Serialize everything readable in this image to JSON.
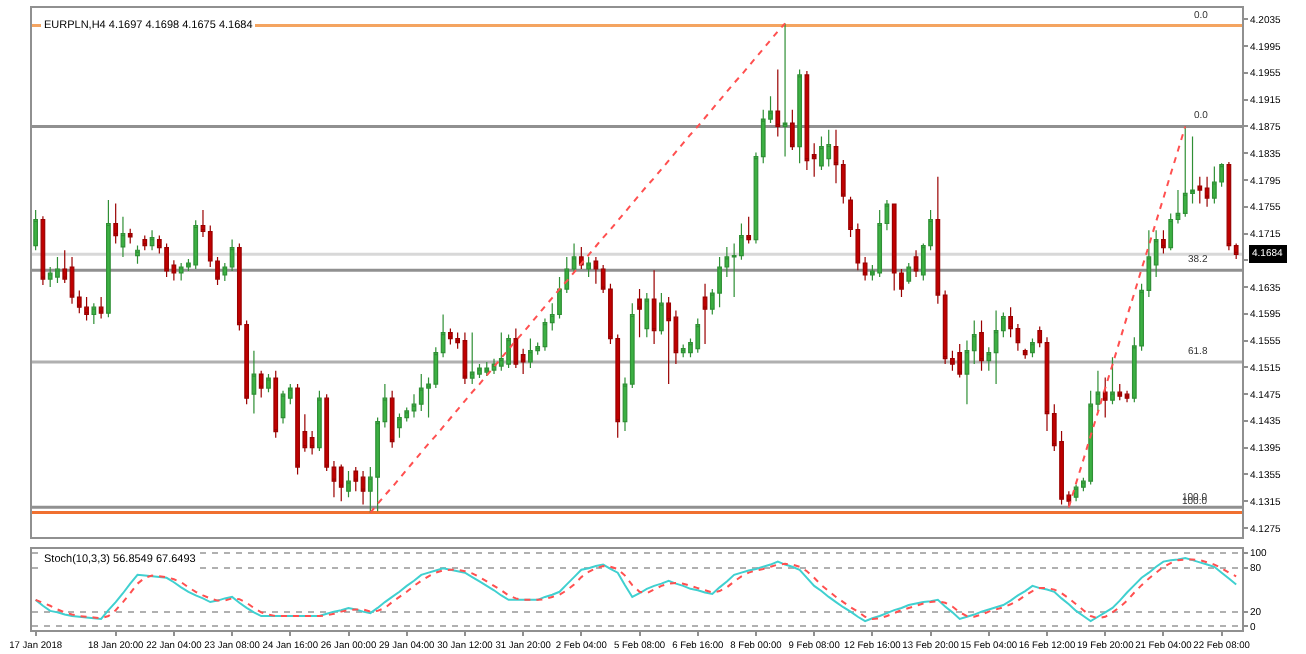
{
  "chart_data": [
    {
      "type": "candlestick",
      "title": "EURPLN,H4 4.1697 4.1698 4.1675 4.1684",
      "tick_labels": "y",
      "grid": false,
      "categories": [
        null,
        null,
        null,
        null,
        null,
        null,
        null,
        null,
        null,
        null,
        null,
        null,
        null,
        null,
        null,
        null,
        null,
        null,
        null,
        null,
        null,
        null,
        null,
        null,
        null,
        null,
        null,
        null,
        null,
        null,
        null,
        null,
        null,
        null,
        null,
        null,
        null,
        null,
        null,
        null,
        null,
        null,
        null,
        null,
        null,
        null,
        null,
        null,
        null,
        null,
        null,
        null,
        null,
        null,
        null,
        null,
        null,
        null,
        null,
        null,
        null,
        null,
        null,
        null,
        null,
        null,
        null,
        null,
        null,
        null,
        null,
        null,
        null,
        null,
        null,
        null,
        null,
        null,
        null,
        null,
        null,
        null,
        null,
        null,
        null,
        null,
        null,
        null,
        null,
        null,
        null,
        null,
        null,
        null,
        null,
        null,
        null,
        null,
        null,
        null,
        null,
        null,
        null,
        null,
        null,
        null,
        null,
        null,
        null,
        null,
        null,
        null,
        null,
        null,
        null,
        null,
        null,
        null,
        null,
        null,
        null,
        null,
        null,
        null,
        null,
        null,
        null,
        null,
        null,
        null,
        null,
        null,
        null,
        null,
        null,
        null,
        null,
        null,
        null,
        null,
        null,
        null,
        null,
        null,
        null,
        null,
        null,
        null,
        null,
        null,
        null,
        null,
        null,
        null,
        null,
        null,
        null,
        null,
        null,
        null,
        null,
        null,
        null,
        null,
        null,
        null
      ],
      "ohlc": [
        [
          4.1697,
          4.175,
          4.169,
          4.1736
        ],
        [
          4.1736,
          4.1741,
          4.1638,
          4.1647
        ],
        [
          4.1647,
          4.1665,
          4.1635,
          4.1656
        ],
        [
          4.165,
          4.168,
          4.1641,
          4.1662
        ],
        [
          4.1662,
          4.169,
          4.1641,
          4.1647
        ],
        [
          4.1665,
          4.168,
          4.161,
          4.162
        ],
        [
          4.162,
          4.163,
          4.1596,
          4.1605
        ],
        [
          4.1605,
          4.162,
          4.1585,
          4.1594
        ],
        [
          4.1594,
          4.1611,
          4.158,
          4.1605
        ],
        [
          4.1605,
          4.162,
          4.1588,
          4.1596
        ],
        [
          4.1596,
          4.1765,
          4.159,
          4.173
        ],
        [
          4.173,
          4.176,
          4.17,
          4.1712
        ],
        [
          4.1695,
          4.174,
          4.168,
          4.1715
        ],
        [
          4.1715,
          4.1722,
          4.17,
          4.171
        ],
        [
          4.1682,
          4.1697,
          4.167,
          4.169
        ],
        [
          4.1706,
          4.1712,
          4.169,
          4.1697
        ],
        [
          4.1697,
          4.172,
          4.169,
          4.1709
        ],
        [
          4.1706,
          4.1712,
          4.1685,
          4.1694
        ],
        [
          4.1694,
          4.17,
          4.165,
          4.1659
        ],
        [
          4.1668,
          4.1675,
          4.1645,
          4.1656
        ],
        [
          4.1656,
          4.1671,
          4.1645,
          4.1665
        ],
        [
          4.1665,
          4.1677,
          4.1659,
          4.1671
        ],
        [
          4.1668,
          4.1735,
          4.1662,
          4.1727
        ],
        [
          4.1727,
          4.175,
          4.171,
          4.1718
        ],
        [
          4.1718,
          4.1727,
          4.1665,
          4.1674
        ],
        [
          4.1674,
          4.168,
          4.1638,
          4.1647
        ],
        [
          4.1653,
          4.1671,
          4.1644,
          4.1665
        ],
        [
          4.1665,
          4.1706,
          4.1659,
          4.1694
        ],
        [
          4.1694,
          4.17,
          4.157,
          4.1579
        ],
        [
          4.1579,
          4.1585,
          4.146,
          4.1469
        ],
        [
          4.1475,
          4.154,
          4.1446,
          4.1505
        ],
        [
          4.1505,
          4.151,
          4.147,
          4.1484
        ],
        [
          4.1484,
          4.1505,
          4.1478,
          4.1499
        ],
        [
          4.1499,
          4.151,
          4.141,
          4.1419
        ],
        [
          4.144,
          4.148,
          4.1431,
          4.1475
        ],
        [
          4.1469,
          4.149,
          4.146,
          4.1484
        ],
        [
          4.1484,
          4.149,
          4.1355,
          4.1366
        ],
        [
          4.1419,
          4.1445,
          4.1389,
          4.1395
        ],
        [
          4.141,
          4.142,
          4.1385,
          4.1395
        ],
        [
          4.1395,
          4.148,
          4.139,
          4.1469
        ],
        [
          4.1469,
          4.1475,
          4.136,
          4.1366
        ],
        [
          4.1366,
          4.1375,
          4.1321,
          4.1345
        ],
        [
          4.1366,
          4.137,
          4.1315,
          4.1336
        ],
        [
          4.133,
          4.136,
          4.1321,
          4.1345
        ],
        [
          4.136,
          4.1366,
          4.133,
          4.1345
        ],
        [
          4.1351,
          4.136,
          4.131,
          4.133
        ],
        [
          4.133,
          4.1366,
          4.1298,
          4.1351
        ],
        [
          4.1351,
          4.144,
          4.13,
          4.1434
        ],
        [
          4.1434,
          4.149,
          4.1425,
          4.1469
        ],
        [
          4.1469,
          4.148,
          4.1395,
          4.1404
        ],
        [
          4.1425,
          4.1446,
          4.141,
          4.144
        ],
        [
          4.144,
          4.1455,
          4.1434,
          4.145
        ],
        [
          4.145,
          4.1475,
          4.144,
          4.146
        ],
        [
          4.146,
          4.1505,
          4.145,
          4.1484
        ],
        [
          4.1484,
          4.15,
          4.144,
          4.149
        ],
        [
          4.149,
          4.1545,
          4.1484,
          4.1537
        ],
        [
          4.1537,
          4.1594,
          4.153,
          4.1567
        ],
        [
          4.1567,
          4.1573,
          4.1549,
          4.1558
        ],
        [
          4.1558,
          4.1567,
          4.1543,
          4.1552
        ],
        [
          4.1555,
          4.1567,
          4.149,
          4.1499
        ],
        [
          4.1499,
          4.1567,
          4.149,
          4.1508
        ],
        [
          4.1505,
          4.152,
          4.1499,
          4.1514
        ],
        [
          4.1508,
          4.1523,
          4.1502,
          4.1514
        ],
        [
          4.1511,
          4.1528,
          4.1505,
          4.152
        ],
        [
          4.1517,
          4.1567,
          4.151,
          4.1528
        ],
        [
          4.152,
          4.1564,
          4.1514,
          4.1558
        ],
        [
          4.1558,
          4.1573,
          4.1514,
          4.152
        ],
        [
          4.1534,
          4.1543,
          4.1505,
          4.1523
        ],
        [
          4.1523,
          4.1558,
          4.1514,
          4.154
        ],
        [
          4.154,
          4.1552,
          4.1534,
          4.1546
        ],
        [
          4.1546,
          4.1588,
          4.154,
          4.1582
        ],
        [
          4.1582,
          4.1611,
          4.157,
          4.1594
        ],
        [
          4.1594,
          4.165,
          4.1588,
          4.1632
        ],
        [
          4.1632,
          4.168,
          4.1626,
          4.1662
        ],
        [
          4.1662,
          4.17,
          4.1656,
          4.168
        ],
        [
          4.168,
          4.1695,
          4.1662,
          4.1668
        ],
        [
          4.1662,
          4.168,
          4.165,
          4.1671
        ],
        [
          4.1674,
          4.168,
          4.164,
          4.1662
        ],
        [
          4.1662,
          4.1668,
          4.1626,
          4.1632
        ],
        [
          4.1632,
          4.164,
          4.155,
          4.1558
        ],
        [
          4.1558,
          4.1564,
          4.141,
          4.1434
        ],
        [
          4.1434,
          4.15,
          4.142,
          4.149
        ],
        [
          4.149,
          4.1611,
          4.1484,
          4.1594
        ],
        [
          4.1617,
          4.1632,
          4.156,
          4.1602
        ],
        [
          4.1573,
          4.1626,
          4.156,
          4.1617
        ],
        [
          4.1617,
          4.166,
          4.155,
          4.157
        ],
        [
          4.157,
          4.1626,
          4.1564,
          4.1611
        ],
        [
          4.1611,
          4.162,
          4.149,
          4.1585
        ],
        [
          4.159,
          4.16,
          4.152,
          4.1537
        ],
        [
          4.1537,
          4.1549,
          4.153,
          4.1543
        ],
        [
          4.1537,
          4.1558,
          4.153,
          4.1552
        ],
        [
          4.1543,
          4.1588,
          4.1537,
          4.1579
        ],
        [
          4.162,
          4.164,
          4.155,
          4.1602
        ],
        [
          4.1602,
          4.1632,
          4.1594,
          4.1626
        ],
        [
          4.1626,
          4.168,
          4.1605,
          4.1665
        ],
        [
          4.1665,
          4.1695,
          4.165,
          4.168
        ],
        [
          4.168,
          4.17,
          4.162,
          4.1682
        ],
        [
          4.1682,
          4.173,
          4.1676,
          4.1712
        ],
        [
          4.1712,
          4.174,
          4.17,
          4.1706
        ],
        [
          4.1706,
          4.1836,
          4.17,
          4.183
        ],
        [
          4.183,
          4.19,
          4.182,
          4.1886
        ],
        [
          4.1886,
          4.192,
          4.188,
          4.1898
        ],
        [
          4.1898,
          4.196,
          4.186,
          4.1875
        ],
        [
          4.1875,
          4.2029,
          4.183,
          4.188
        ],
        [
          4.188,
          4.19,
          4.184,
          4.1845
        ],
        [
          4.1845,
          4.196,
          4.182,
          4.1952
        ],
        [
          4.1952,
          4.1958,
          4.181,
          4.1824
        ],
        [
          4.1833,
          4.185,
          4.18,
          4.1827
        ],
        [
          4.1816,
          4.186,
          4.181,
          4.1845
        ],
        [
          4.1827,
          4.187,
          4.1815,
          4.1848
        ],
        [
          4.1845,
          4.187,
          4.179,
          4.1818
        ],
        [
          4.1818,
          4.1825,
          4.176,
          4.1771
        ],
        [
          4.1765,
          4.177,
          4.171,
          4.1721
        ],
        [
          4.1721,
          4.173,
          4.166,
          4.1671
        ],
        [
          4.1671,
          4.168,
          4.1645,
          4.1653
        ],
        [
          4.1653,
          4.1668,
          4.1645,
          4.1659
        ],
        [
          4.1656,
          4.175,
          4.165,
          4.173
        ],
        [
          4.173,
          4.1765,
          4.172,
          4.1759
        ],
        [
          4.1759,
          4.176,
          4.163,
          4.1656
        ],
        [
          4.1656,
          4.1662,
          4.162,
          4.1632
        ],
        [
          4.1644,
          4.1671,
          4.164,
          4.1665
        ],
        [
          4.168,
          4.169,
          4.165,
          4.1659
        ],
        [
          4.1653,
          4.17,
          4.1645,
          4.1697
        ],
        [
          4.1697,
          4.175,
          4.169,
          4.1736
        ],
        [
          4.1736,
          4.18,
          4.161,
          4.1623
        ],
        [
          4.1623,
          4.163,
          4.152,
          4.1528
        ],
        [
          4.1528,
          4.154,
          4.151,
          4.152
        ],
        [
          4.1537,
          4.155,
          4.15,
          4.1505
        ],
        [
          4.1505,
          4.1555,
          4.146,
          4.154
        ],
        [
          4.154,
          4.1585,
          4.152,
          4.1564
        ],
        [
          4.1567,
          4.1585,
          4.151,
          4.1525
        ],
        [
          4.1525,
          4.1545,
          4.151,
          4.1537
        ],
        [
          4.1537,
          4.16,
          4.149,
          4.157
        ],
        [
          4.157,
          4.1597,
          4.156,
          4.1591
        ],
        [
          4.1591,
          4.1605,
          4.156,
          4.1573
        ],
        [
          4.1573,
          4.158,
          4.154,
          4.1552
        ],
        [
          4.154,
          4.1543,
          4.1528,
          4.1534
        ],
        [
          4.1537,
          4.1558,
          4.153,
          4.1552
        ],
        [
          4.157,
          4.1576,
          4.1545,
          4.1552
        ],
        [
          4.1552,
          4.156,
          4.142,
          4.1446
        ],
        [
          4.1446,
          4.146,
          4.139,
          4.1398
        ],
        [
          4.1404,
          4.142,
          4.131,
          4.1318
        ],
        [
          4.1324,
          4.133,
          4.1306,
          4.1315
        ],
        [
          4.1321,
          4.134,
          4.1315,
          4.1336
        ],
        [
          4.1336,
          4.135,
          4.133,
          4.1345
        ],
        [
          4.1345,
          4.148,
          4.134,
          4.146
        ],
        [
          4.146,
          4.151,
          4.145,
          4.1478
        ],
        [
          4.1478,
          4.15,
          4.144,
          4.1466
        ],
        [
          4.1466,
          4.153,
          4.146,
          4.1478
        ],
        [
          4.1478,
          4.149,
          4.1466,
          4.1472
        ],
        [
          4.1475,
          4.148,
          4.1463,
          4.1469
        ],
        [
          4.1469,
          4.156,
          4.1463,
          4.1547
        ],
        [
          4.1547,
          4.164,
          4.154,
          4.163
        ],
        [
          4.163,
          4.172,
          4.162,
          4.168
        ],
        [
          4.1668,
          4.172,
          4.165,
          4.1706
        ],
        [
          4.1706,
          4.172,
          4.1685,
          4.1694
        ],
        [
          4.1694,
          4.1745,
          4.169,
          4.1736
        ],
        [
          4.1736,
          4.178,
          4.173,
          4.1745
        ],
        [
          4.1745,
          4.1875,
          4.174,
          4.1775
        ],
        [
          4.1775,
          4.186,
          4.176,
          4.178
        ],
        [
          4.1786,
          4.18,
          4.176,
          4.178
        ],
        [
          4.1783,
          4.18,
          4.1755,
          4.1768
        ],
        [
          4.1768,
          4.1815,
          4.176,
          4.1792
        ],
        [
          4.1792,
          4.182,
          4.1785,
          4.1818
        ],
        [
          4.1818,
          4.1822,
          4.169,
          4.1697
        ],
        [
          4.1697,
          4.17,
          4.1677,
          4.1684
        ]
      ],
      "series": [
        {
          "type": "line",
          "color": "#ff5050",
          "line_style": "dotted",
          "values": [
            null,
            null,
            null,
            null,
            null,
            null,
            null,
            null,
            null,
            null,
            null,
            null,
            null,
            null,
            null,
            null,
            null,
            null,
            null,
            null,
            null,
            null,
            null,
            null,
            null,
            null,
            null,
            null,
            null,
            null,
            null,
            null,
            null,
            null,
            null,
            null,
            null,
            null,
            null,
            null,
            null,
            null,
            null,
            null,
            null,
            null,
            4.1298,
            4.1311,
            4.1324,
            4.1336,
            4.1349,
            4.1362,
            4.1375,
            4.1388,
            4.1401,
            4.1413,
            4.1426,
            4.1439,
            4.1452,
            4.1465,
            4.1478,
            4.149,
            4.1503,
            4.1516,
            4.1529,
            4.1542,
            4.1555,
            4.1567,
            4.158,
            4.1593,
            4.1606,
            4.1619,
            4.1632,
            4.1644,
            4.1657,
            4.167,
            4.1683,
            4.1696,
            4.1709,
            4.1721,
            4.1734,
            4.1747,
            4.176,
            4.1773,
            4.1786,
            4.1798,
            4.1811,
            4.1824,
            4.1837,
            4.185,
            4.1863,
            4.1875,
            4.1888,
            4.1901,
            4.1914,
            4.1927,
            4.194,
            4.1952,
            4.1965,
            4.1978,
            4.1991,
            4.2004,
            4.2017,
            4.2029,
            null,
            null,
            null,
            null,
            null,
            null,
            null,
            null,
            null,
            null,
            null,
            null,
            null,
            null,
            null,
            null,
            null,
            null,
            null,
            null,
            null,
            null,
            null,
            null,
            null,
            null,
            null,
            null,
            null,
            null,
            null,
            null,
            null,
            null,
            null,
            null,
            null,
            null,
            null,
            null,
            null,
            null,
            null,
            null,
            null,
            null,
            null,
            null,
            null,
            null,
            null,
            null,
            null,
            null,
            null,
            null,
            null,
            null,
            null,
            null,
            null,
            null
          ]
        },
        {
          "type": "line",
          "color": "#ff5050",
          "line_style": "dotted",
          "values": [
            null,
            null,
            null,
            null,
            null,
            null,
            null,
            null,
            null,
            null,
            null,
            null,
            null,
            null,
            null,
            null,
            null,
            null,
            null,
            null,
            null,
            null,
            null,
            null,
            null,
            null,
            null,
            null,
            null,
            null,
            null,
            null,
            null,
            null,
            null,
            null,
            null,
            null,
            null,
            null,
            null,
            null,
            null,
            null,
            null,
            null,
            null,
            null,
            null,
            null,
            null,
            null,
            null,
            null,
            null,
            null,
            null,
            null,
            null,
            null,
            null,
            null,
            null,
            null,
            null,
            null,
            null,
            null,
            null,
            null,
            null,
            null,
            null,
            null,
            null,
            null,
            null,
            null,
            null,
            null,
            null,
            null,
            null,
            null,
            null,
            null,
            null,
            null,
            null,
            null,
            null,
            null,
            null,
            null,
            null,
            null,
            null,
            null,
            null,
            null,
            null,
            null,
            null,
            null,
            null,
            null,
            null,
            null,
            null,
            null,
            null,
            null,
            null,
            null,
            null,
            null,
            null,
            null,
            null,
            null,
            null,
            null,
            null,
            null,
            null,
            null,
            null,
            null,
            null,
            null,
            null,
            null,
            null,
            null,
            null,
            null,
            null,
            null,
            null,
            null,
            null,
            null,
            4.1306,
            4.1342,
            4.1377,
            4.1413,
            4.1448,
            4.1484,
            4.1519,
            4.1555,
            4.1591,
            4.1626,
            4.1662,
            4.1697,
            4.1733,
            4.1768,
            4.1804,
            4.1839,
            4.1875,
            null,
            null,
            null,
            null,
            null,
            null,
            null
          ]
        }
      ],
      "ylim": [
        4.1262,
        4.2052
      ],
      "yticks": [
        4.1275,
        4.1315,
        4.1355,
        4.1395,
        4.1435,
        4.1475,
        4.1515,
        4.1555,
        4.1595,
        4.1635,
        {
          "value": 4.1675,
          "label": null
        },
        4.1715,
        4.1755,
        4.1795,
        4.1835,
        4.1875,
        4.1915,
        4.1955,
        4.1995,
        4.2035
      ],
      "ref_lines": [
        {
          "axis": "y",
          "value": 4.2026,
          "color": "#f4a460"
        },
        {
          "axis": "y",
          "value": 4.1298,
          "color": "#f07030"
        },
        {
          "axis": "y",
          "value": 4.1875,
          "color": "#909090"
        },
        {
          "axis": "y",
          "value": 4.166,
          "color": "#909090"
        },
        {
          "axis": "y",
          "value": 4.1523,
          "color": "#b0b0b0"
        },
        {
          "axis": "y",
          "value": 4.1306,
          "color": "#909090"
        },
        {
          "axis": "y",
          "value": 4.1684,
          "label": "4.1684",
          "color": "#d8d8d8"
        }
      ],
      "annotations": [
        {
          "text": "0.0",
          "y": 4.2026
        },
        {
          "text": "100.0",
          "y": 4.1298
        },
        {
          "text": "0.0",
          "y": 4.1875
        },
        {
          "text": "38.2",
          "y": 4.166
        },
        {
          "text": "61.8",
          "y": 4.1523
        },
        {
          "text": "100.0",
          "y": 4.1306
        }
      ]
    },
    {
      "type": "line",
      "title": "Stoch(10,3,3) 56.8549 67.6493",
      "grid": "y",
      "marker": "none",
      "series": [
        {
          "color": "#40d0d0",
          "line_style": "solid",
          "values": [
            36,
            28,
            21,
            19,
            16,
            14,
            13,
            12,
            11,
            10,
            22,
            33,
            45,
            58,
            70,
            69,
            68,
            67,
            66,
            60,
            53,
            47,
            42,
            38,
            33,
            35,
            38,
            40,
            32,
            25,
            19,
            14,
            14,
            14,
            14,
            14,
            14,
            14,
            14,
            14,
            17,
            20,
            22,
            25,
            23,
            20,
            18,
            25,
            33,
            40,
            47,
            55,
            62,
            70,
            73,
            76,
            79,
            77,
            75,
            73,
            67,
            61,
            55,
            49,
            42,
            36,
            36,
            36,
            36,
            36,
            40,
            43,
            47,
            57,
            67,
            77,
            79,
            82,
            84,
            78,
            73,
            56,
            40,
            45,
            51,
            55,
            58,
            62,
            58,
            55,
            51,
            49,
            46,
            44,
            53,
            61,
            70,
            73,
            76,
            78,
            81,
            84,
            88,
            84,
            81,
            77,
            66,
            55,
            48,
            40,
            33,
            26,
            20,
            13,
            7,
            11,
            14,
            18,
            22,
            25,
            29,
            31,
            33,
            34,
            36,
            27,
            19,
            10,
            13,
            16,
            20,
            23,
            26,
            29,
            35,
            42,
            48,
            55,
            52,
            50,
            47,
            38,
            30,
            21,
            14,
            7,
            13,
            19,
            25,
            35,
            46,
            56,
            66,
            73,
            81,
            88,
            90,
            91,
            93,
            90,
            87,
            84,
            81,
            73,
            65,
            57
          ]
        },
        {
          "color": "#ff5050",
          "line_style": "dotted",
          "values": [
            36,
            32,
            28,
            23,
            19,
            16,
            14,
            13,
            12,
            11,
            14,
            22,
            33,
            45,
            58,
            66,
            69,
            68,
            67,
            64,
            60,
            53,
            47,
            42,
            38,
            35,
            35,
            38,
            37,
            32,
            25,
            19,
            16,
            14,
            14,
            14,
            14,
            14,
            14,
            14,
            15,
            17,
            20,
            22,
            23,
            23,
            20,
            21,
            25,
            33,
            40,
            47,
            55,
            62,
            68,
            73,
            76,
            77,
            77,
            75,
            72,
            67,
            61,
            55,
            49,
            42,
            38,
            36,
            36,
            36,
            37,
            40,
            43,
            49,
            57,
            67,
            74,
            79,
            82,
            81,
            78,
            69,
            56,
            47,
            45,
            50,
            55,
            58,
            59,
            58,
            55,
            52,
            49,
            46,
            48,
            53,
            61,
            68,
            73,
            76,
            78,
            81,
            84,
            85,
            84,
            81,
            75,
            66,
            56,
            48,
            40,
            33,
            26,
            20,
            13,
            10,
            11,
            14,
            18,
            22,
            25,
            28,
            31,
            33,
            34,
            32,
            27,
            19,
            14,
            13,
            16,
            20,
            23,
            26,
            30,
            35,
            42,
            48,
            52,
            52,
            50,
            45,
            38,
            30,
            22,
            14,
            11,
            13,
            19,
            26,
            35,
            46,
            56,
            65,
            73,
            81,
            86,
            90,
            91,
            91,
            90,
            87,
            84,
            79,
            73,
            68
          ]
        }
      ],
      "categories": [
        "17 Jan 2018",
        null,
        null,
        null,
        null,
        null,
        null,
        null,
        null,
        null,
        null,
        "18 Jan 20:00",
        null,
        null,
        null,
        null,
        null,
        null,
        null,
        "22 Jan 04:00",
        null,
        null,
        null,
        null,
        null,
        null,
        null,
        "23 Jan 08:00",
        null,
        null,
        null,
        null,
        null,
        null,
        null,
        "24 Jan 16:00",
        null,
        null,
        null,
        null,
        null,
        null,
        null,
        "26 Jan 00:00",
        null,
        null,
        null,
        null,
        null,
        null,
        null,
        "29 Jan 04:00",
        null,
        null,
        null,
        null,
        null,
        null,
        null,
        "30 Jan 12:00",
        null,
        null,
        null,
        null,
        null,
        null,
        null,
        "31 Jan 20:00",
        null,
        null,
        null,
        null,
        null,
        null,
        null,
        "2 Feb 04:00",
        null,
        null,
        null,
        null,
        null,
        null,
        null,
        "5 Feb 08:00",
        null,
        null,
        null,
        null,
        null,
        null,
        null,
        "6 Feb 16:00",
        null,
        null,
        null,
        null,
        null,
        null,
        null,
        "8 Feb 00:00",
        null,
        null,
        null,
        null,
        null,
        null,
        null,
        "9 Feb 08:00",
        null,
        null,
        null,
        null,
        null,
        null,
        null,
        "12 Feb 16:00",
        null,
        null,
        null,
        null,
        null,
        null,
        null,
        "13 Feb 20:00",
        null,
        null,
        null,
        null,
        null,
        null,
        null,
        "15 Feb 04:00",
        null,
        null,
        null,
        null,
        null,
        null,
        null,
        "16 Feb 12:00",
        null,
        null,
        null,
        null,
        null,
        null,
        null,
        "19 Feb 20:00",
        null,
        null,
        null,
        null,
        null,
        null,
        null,
        "21 Feb 04:00",
        null,
        null,
        null,
        null,
        null,
        null,
        null,
        "22 Feb 08:00",
        null,
        null
      ],
      "ylim": [
        -5,
        105
      ],
      "yticks": [
        0,
        20,
        80,
        100
      ]
    }
  ]
}
